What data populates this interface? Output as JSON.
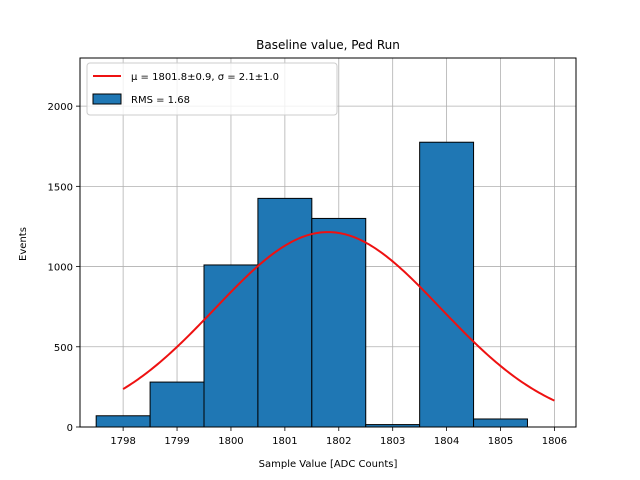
{
  "chart_data": {
    "type": "bar",
    "title": "Baseline value, Ped Run",
    "xlabel": "Sample Value [ADC Counts]",
    "ylabel": "Events",
    "xlim": [
      1797.2,
      1806.4
    ],
    "ylim": [
      0,
      2300
    ],
    "x_ticks": [
      1798,
      1799,
      1800,
      1801,
      1802,
      1803,
      1804,
      1805,
      1806
    ],
    "y_ticks": [
      0,
      500,
      1000,
      1500,
      2000
    ],
    "grid": true,
    "legend_position": "top-left",
    "bar_color": "#1f77b4",
    "bar_edge_color": "#000000",
    "fit_color": "#ee1111",
    "histogram": {
      "name": "RMS = 1.68",
      "bins": [
        {
          "center": 1798,
          "count": 70
        },
        {
          "center": 1799,
          "count": 280
        },
        {
          "center": 1800,
          "count": 1010
        },
        {
          "center": 1801,
          "count": 1425
        },
        {
          "center": 1802,
          "count": 1300
        },
        {
          "center": 1803,
          "count": 15
        },
        {
          "center": 1804,
          "count": 1775
        },
        {
          "center": 1805,
          "count": 50
        }
      ]
    },
    "fit": {
      "type": "gaussian",
      "mu_label": "μ = 1801.8±0.9, σ = 2.1±1.0",
      "mu": 1801.8,
      "sigma": 2.1,
      "amplitude": 1215,
      "x_range": [
        1798,
        1806
      ]
    }
  }
}
